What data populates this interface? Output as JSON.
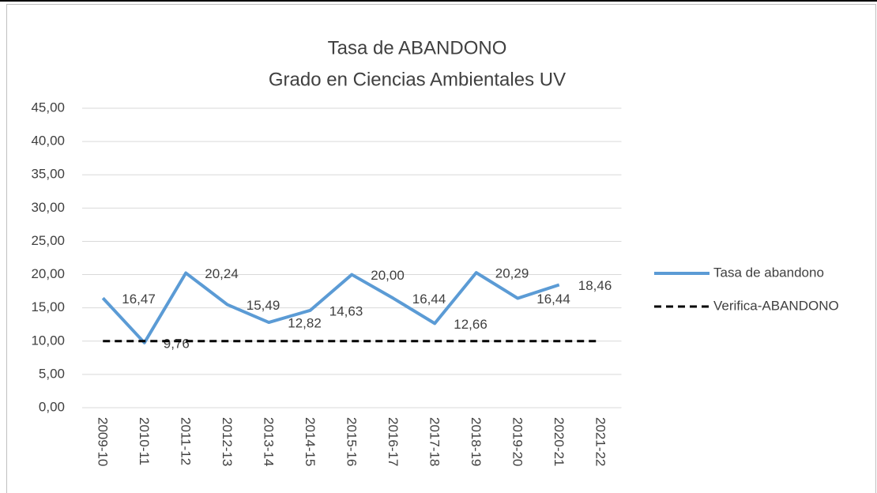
{
  "chart_data": {
    "type": "line",
    "title": "Tasa de ABANDONO",
    "subtitle": "Grado en Ciencias Ambientales UV",
    "categories": [
      "2009-10",
      "2010-11",
      "2011-12",
      "2012-13",
      "2013-14",
      "2014-15",
      "2015-16",
      "2016-17",
      "2017-18",
      "2018-19",
      "2019-20",
      "2020-21",
      "2021-22"
    ],
    "series": [
      {
        "name": "Tasa de abandono",
        "color": "#5b9bd5",
        "dash": false,
        "values": [
          16.47,
          9.76,
          20.24,
          15.49,
          12.82,
          14.63,
          20.0,
          16.44,
          12.66,
          20.29,
          16.44,
          18.46,
          null
        ],
        "value_labels": [
          "16,47",
          "9,76",
          "20,24",
          "15,49",
          "12,82",
          "14,63",
          "20,00",
          "16,44",
          "12,66",
          "20,29",
          "16,44",
          "18,46",
          null
        ]
      },
      {
        "name": "Verifica-ABANDONO",
        "color": "#000000",
        "dash": true,
        "values": [
          10,
          10,
          10,
          10,
          10,
          10,
          10,
          10,
          10,
          10,
          10,
          10,
          10
        ]
      }
    ],
    "ylim": [
      0,
      45
    ],
    "yticks": [
      {
        "value": 0,
        "label": "0,00"
      },
      {
        "value": 5,
        "label": "5,00"
      },
      {
        "value": 10,
        "label": "10,00"
      },
      {
        "value": 15,
        "label": "15,00"
      },
      {
        "value": 20,
        "label": "20,00"
      },
      {
        "value": 25,
        "label": "25,00"
      },
      {
        "value": 30,
        "label": "30,00"
      },
      {
        "value": 35,
        "label": "35,00"
      },
      {
        "value": 40,
        "label": "40,00"
      },
      {
        "value": 45,
        "label": "45,00"
      }
    ],
    "grid": true,
    "legend": "right"
  }
}
